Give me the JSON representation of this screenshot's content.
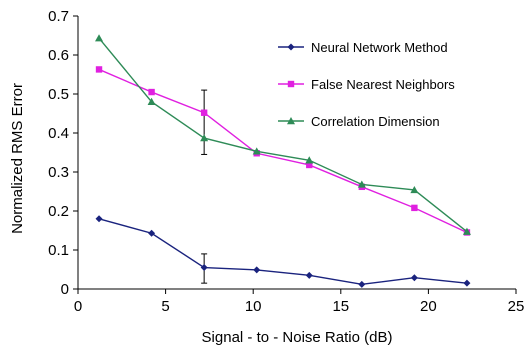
{
  "chart_data": {
    "type": "line",
    "title": "",
    "xlabel": "Signal - to - Noise Ratio (dB)",
    "ylabel": "Normalized RMS Error",
    "xlim": [
      0,
      25
    ],
    "ylim": [
      0,
      0.7
    ],
    "xticks": [
      0,
      5,
      10,
      15,
      20,
      25
    ],
    "yticks": [
      0,
      0.1,
      0.2,
      0.3,
      0.4,
      0.5,
      0.6,
      0.7
    ],
    "xtick_labels": [
      "0",
      "5",
      "10",
      "15",
      "20",
      "25"
    ],
    "ytick_labels": [
      "0",
      "0.1",
      "0.2",
      "0.3",
      "0.4",
      "0.5",
      "0.6",
      "0.7"
    ],
    "grid": false,
    "legend_position": "top-right",
    "x": [
      1.2,
      4.2,
      7.2,
      10.2,
      13.2,
      16.2,
      19.2,
      22.2
    ],
    "series": [
      {
        "name": "Neural Network Method",
        "values": [
          0.18,
          0.143,
          0.055,
          0.049,
          0.035,
          0.012,
          0.029,
          0.015
        ],
        "color": "#1a237e",
        "marker": "diamond"
      },
      {
        "name": "False Nearest Neighbors",
        "values": [
          0.563,
          0.505,
          0.452,
          0.348,
          0.318,
          0.262,
          0.208,
          0.145
        ],
        "color": "#e020e0",
        "marker": "square"
      },
      {
        "name": "Correlation Dimension",
        "values": [
          0.643,
          0.48,
          0.387,
          0.353,
          0.33,
          0.268,
          0.254,
          0.147
        ],
        "color": "#2e8b57",
        "marker": "triangle"
      }
    ],
    "error_bars": [
      {
        "x": 7.2,
        "low": 0.015,
        "high": 0.09
      },
      {
        "x": 7.2,
        "low": 0.345,
        "high": 0.51
      }
    ]
  }
}
